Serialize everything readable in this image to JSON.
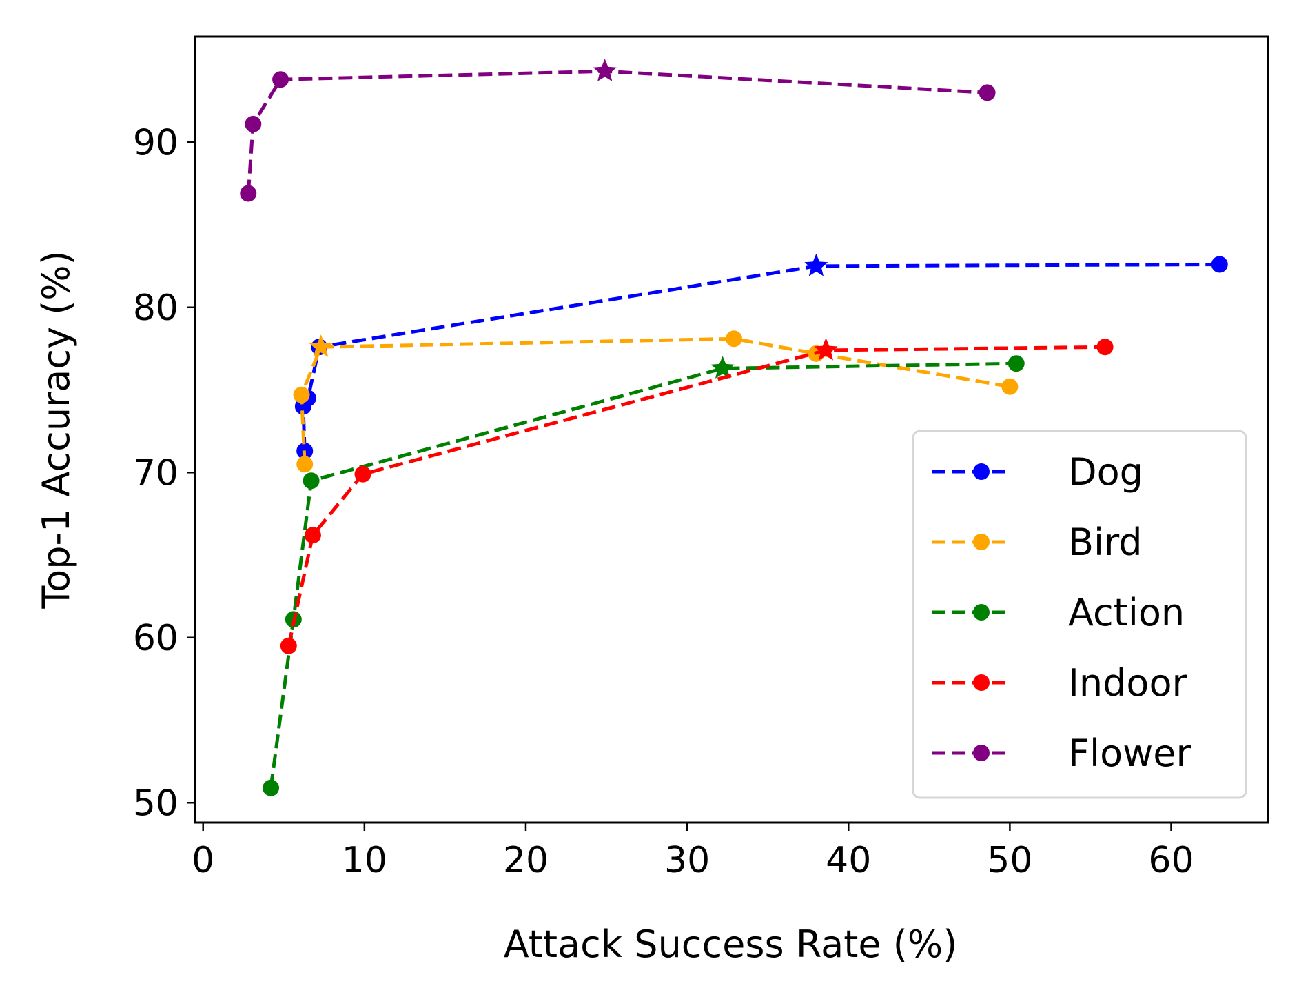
{
  "chart_data": {
    "type": "line",
    "title": "",
    "xlabel": "Attack Success Rate (%)",
    "ylabel": "Top-1 Accuracy (%)",
    "xlim": [
      -0.5,
      66
    ],
    "ylim": [
      48.8,
      96.4
    ],
    "xticks": [
      0,
      10,
      20,
      30,
      40,
      50,
      60
    ],
    "yticks": [
      50,
      60,
      70,
      80,
      90
    ],
    "grid": false,
    "legend_position": "lower-right",
    "series": [
      {
        "name": "Dog",
        "color": "#0000ff",
        "x": [
          6.3,
          6.2,
          6.5,
          7.2,
          38.0,
          63.0
        ],
        "y": [
          71.3,
          74.0,
          74.5,
          77.6,
          82.5,
          82.6
        ],
        "markers": [
          "dot",
          "dot",
          "dot",
          "dot",
          "star",
          "dot"
        ]
      },
      {
        "name": "Bird",
        "color": "#ffa500",
        "x": [
          6.3,
          6.1,
          7.3,
          32.9,
          38.0,
          50.0
        ],
        "y": [
          70.5,
          74.7,
          77.6,
          78.1,
          77.2,
          75.2
        ],
        "markers": [
          "dot",
          "dot",
          "star",
          "dot",
          "dot",
          "dot"
        ]
      },
      {
        "name": "Action",
        "color": "#008000",
        "x": [
          4.2,
          5.6,
          6.7,
          32.2,
          50.4
        ],
        "y": [
          50.9,
          61.1,
          69.5,
          76.3,
          76.6
        ],
        "markers": [
          "dot",
          "dot",
          "dot",
          "star",
          "dot"
        ]
      },
      {
        "name": "Indoor",
        "color": "#ff0000",
        "x": [
          5.3,
          6.8,
          9.9,
          38.6,
          55.9
        ],
        "y": [
          59.5,
          66.2,
          69.9,
          77.4,
          77.6
        ],
        "markers": [
          "dot",
          "dot",
          "dot",
          "star",
          "dot"
        ]
      },
      {
        "name": "Flower",
        "color": "#800080",
        "x": [
          2.8,
          3.1,
          4.8,
          24.9,
          48.6
        ],
        "y": [
          86.9,
          91.1,
          93.8,
          94.3,
          93.0
        ],
        "markers": [
          "dot",
          "dot",
          "dot",
          "star",
          "dot"
        ]
      }
    ]
  }
}
